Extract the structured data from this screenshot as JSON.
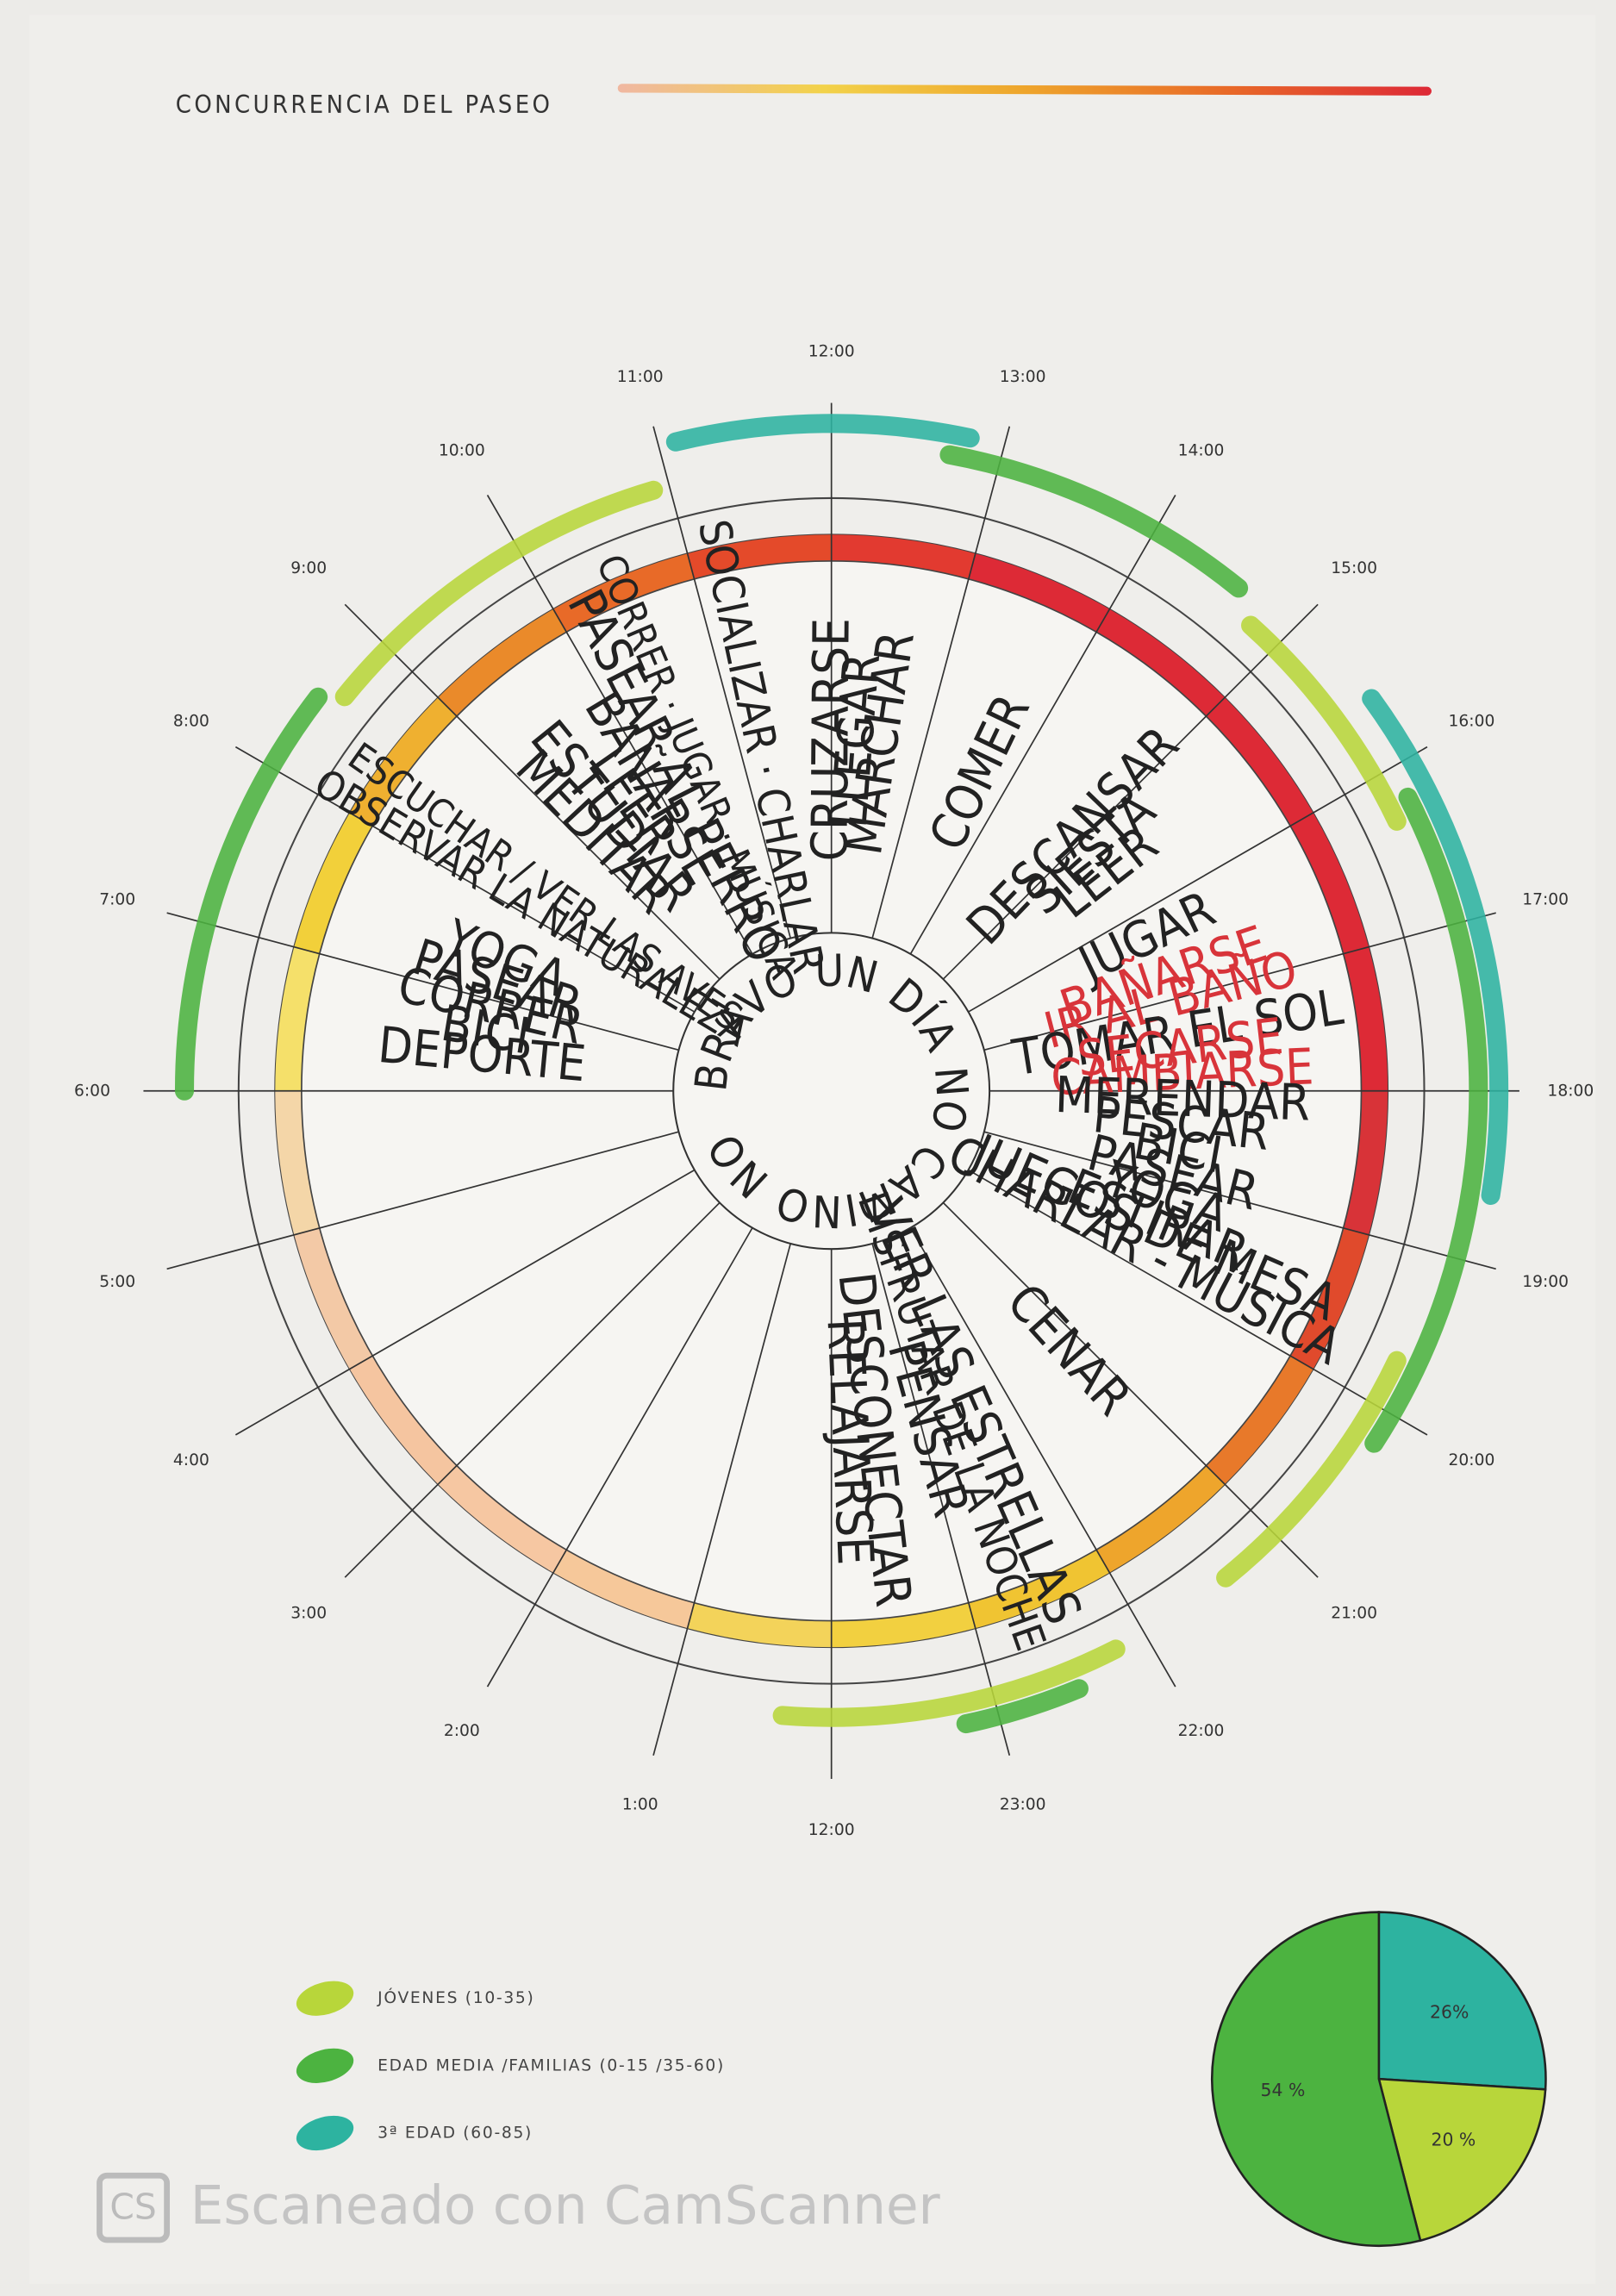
{
  "title": "CONCURRENCIA DEL PASEO",
  "title_bar_colors": [
    "#f0b8a0",
    "#f2d24a",
    "#eea52c",
    "#e86a28",
    "#dd2a36"
  ],
  "hub_text": "BRAVO UN DÍA NO CAMINO NO",
  "hours": [
    {
      "value": 0,
      "label": "12:00"
    },
    {
      "value": 1,
      "label": "1:00"
    },
    {
      "value": 2,
      "label": "2:00"
    },
    {
      "value": 3,
      "label": "3:00"
    },
    {
      "value": 4,
      "label": "4:00"
    },
    {
      "value": 5,
      "label": "5:00"
    },
    {
      "value": 6,
      "label": "6:00"
    },
    {
      "value": 7,
      "label": "7:00"
    },
    {
      "value": 8,
      "label": "8:00"
    },
    {
      "value": 9,
      "label": "9:00"
    },
    {
      "value": 10,
      "label": "10:00"
    },
    {
      "value": 11,
      "label": "11:00"
    },
    {
      "value": 12,
      "label": "12:00"
    },
    {
      "value": 13,
      "label": "13:00"
    },
    {
      "value": 14,
      "label": "14:00"
    },
    {
      "value": 15,
      "label": "15:00"
    },
    {
      "value": 16,
      "label": "16:00"
    },
    {
      "value": 17,
      "label": "17:00"
    },
    {
      "value": 18,
      "label": "18:00"
    },
    {
      "value": 19,
      "label": "19:00"
    },
    {
      "value": 20,
      "label": "20:00"
    },
    {
      "value": 21,
      "label": "21:00"
    },
    {
      "value": 22,
      "label": "22:00"
    },
    {
      "value": 23,
      "label": "23:00"
    }
  ],
  "ring_colors": [
    "#f3d35a",
    "#f6c89a",
    "#f6c7a2",
    "#f5c5a0",
    "#f3c9a6",
    "#f4d6a8",
    "#f5e06a",
    "#f2d03a",
    "#efb030",
    "#ea8a2a",
    "#e86a28",
    "#e44a2a",
    "#e23a30",
    "#dd2a36",
    "#dd2a36",
    "#dd2a36",
    "#dd2a36",
    "#dd2a36",
    "#d83338",
    "#e04a2c",
    "#e8792a",
    "#eea52c",
    "#f0c432",
    "#f2d040"
  ],
  "activities": [
    {
      "hour": 6.9,
      "color": "#222222",
      "items": [
        "DEPORTE",
        "BICI",
        "CORRER",
        "PASEAR",
        "YOGA"
      ]
    },
    {
      "hour": 8.2,
      "color": "#222222",
      "items": [
        "OBSERVAR LA NATURALEZA",
        "ESCUCHAR / VER LAS AVES"
      ]
    },
    {
      "hour": 9.4,
      "color": "#222222",
      "items": [
        "MEDITAR",
        "ESTUDIAR",
        "LEER"
      ]
    },
    {
      "hour": 10.2,
      "color": "#222222",
      "items": [
        "BAÑARSE",
        "PASEAR AL PERRO",
        "CORRER · JUGAR · MÚSICA"
      ]
    },
    {
      "hour": 11.2,
      "color": "#222222",
      "items": [
        "SOCIALIZAR · CHARLAR"
      ]
    },
    {
      "hour": 12.3,
      "color": "#222222",
      "items": [
        "CRUZARSE",
        "LLEGAR",
        "MARCHAR"
      ]
    },
    {
      "hour": 13.7,
      "color": "#222222",
      "items": [
        "COMER"
      ]
    },
    {
      "hour": 15.2,
      "color": "#222222",
      "items": [
        "DESCANSAR",
        "SIESTA",
        "LEER"
      ]
    },
    {
      "hour": 16.3,
      "color": "#222222",
      "items": [
        "JUGAR"
      ]
    },
    {
      "hour": 16.9,
      "color": "#d8343a",
      "items": [
        "BAÑARSE",
        "IR AL BAÑO"
      ]
    },
    {
      "hour": 17.4,
      "color": "#222222",
      "items": [
        "TOMAR EL SOL"
      ]
    },
    {
      "hour": 17.7,
      "color": "#d8343a",
      "items": [
        "SECARSE",
        "CAMBIARSE"
      ]
    },
    {
      "hour": 18.8,
      "color": "#222222",
      "items": [
        "MERENDAR",
        "PESCAR",
        "BICI",
        "PASEAR",
        "YOGA",
        "ESTIRAR"
      ]
    },
    {
      "hour": 19.7,
      "color": "#222222",
      "items": [
        "JUEGOS DE MESA",
        "CHARLAR - MÚSICA"
      ]
    },
    {
      "hour": 21.2,
      "color": "#222222",
      "items": [
        "CENAR"
      ]
    },
    {
      "hour": 22.7,
      "color": "#222222",
      "items": [
        "VER LAS ESTRELLAS",
        "DISFRUTAR DE LA NOCHE",
        "PENSAR"
      ]
    },
    {
      "hour": 23.7,
      "color": "#222222",
      "items": [
        "DESCONECTAR",
        "RELAJARSE"
      ]
    }
  ],
  "legend": [
    {
      "label": "JÓVENES (10-35)",
      "color": "#b8d63a",
      "arcs": [
        [
          8.6,
          10.9
        ],
        [
          14.8,
          16.3
        ],
        [
          19.7,
          21.4
        ],
        [
          22.2,
          24.3
        ]
      ]
    },
    {
      "label": "EDAD MEDIA /FAMILIAS (0-15 /35-60)",
      "color": "#4cb340",
      "arcs": [
        [
          6.0,
          8.5
        ],
        [
          12.7,
          14.6
        ],
        [
          16.2,
          20.2
        ],
        [
          22.5,
          23.2
        ]
      ]
    },
    {
      "label": "3ª EDAD (60-85)",
      "color": "#2db3a0",
      "arcs": [
        [
          11.1,
          12.8
        ],
        [
          15.6,
          18.6
        ]
      ]
    }
  ],
  "chart_data": {
    "type": "pie",
    "values": [
      26,
      20,
      54
    ],
    "value_labels": [
      "26%",
      "20 %",
      "54 %"
    ],
    "colors": [
      "#2db3a0",
      "#b8d63a",
      "#4cb340"
    ]
  },
  "watermark": {
    "logo": "CS",
    "text": "Escaneado con CamScanner"
  }
}
